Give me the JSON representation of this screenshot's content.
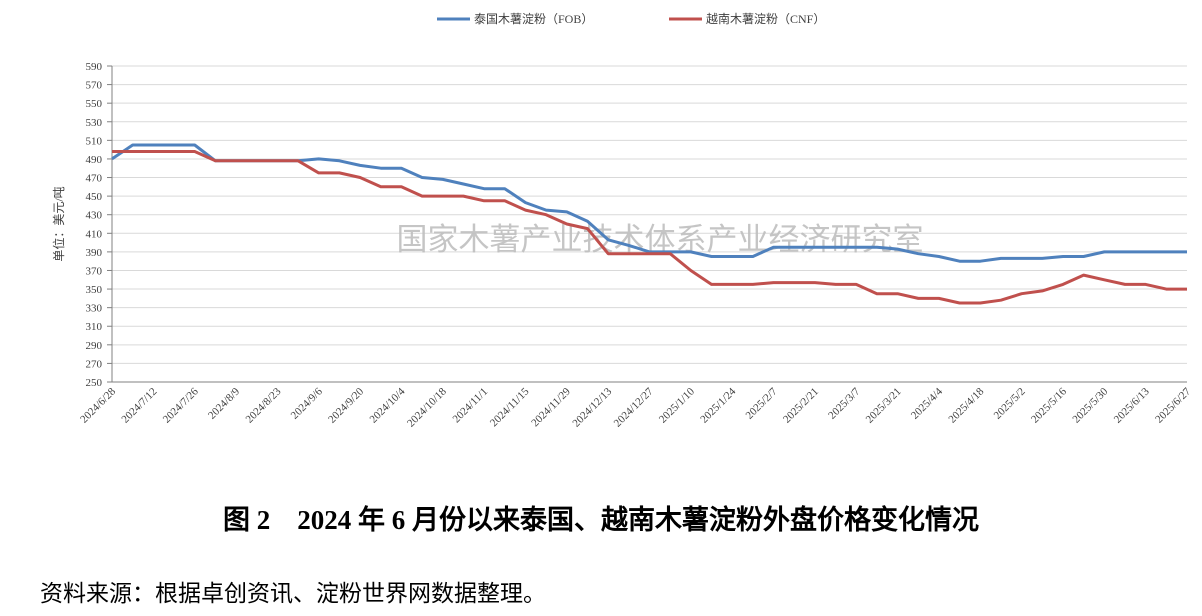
{
  "chart_data": {
    "type": "line",
    "y_label": "单位：美元/吨",
    "watermark": "国家木薯产业技术体系产业经济研究室",
    "caption": "图 2　2024 年 6 月份以来泰国、越南木薯淀粉外盘价格变化情况",
    "source": "资料来源：根据卓创资讯、淀粉世界网数据整理。",
    "categories": [
      "2024/6/28",
      null,
      "2024/7/12",
      null,
      "2024/7/26",
      null,
      "2024/8/9",
      null,
      "2024/8/23",
      null,
      "2024/9/6",
      null,
      "2024/9/20",
      null,
      "2024/10/4",
      null,
      "2024/10/18",
      null,
      "2024/11/1",
      null,
      "2024/11/15",
      null,
      "2024/11/29",
      null,
      "2024/12/13",
      null,
      "2024/12/27",
      null,
      "2025/1/10",
      null,
      "2025/1/24",
      null,
      "2025/2/7",
      null,
      "2025/2/21",
      null,
      "2025/3/7",
      null,
      "2025/3/21",
      null,
      "2025/4/4",
      null,
      "2025/4/18",
      null,
      "2025/5/2",
      null,
      "2025/5/16",
      null,
      "2025/5/30",
      null,
      "2025/6/13",
      null,
      "2025/6/27"
    ],
    "series": [
      {
        "name": "泰国木薯淀粉（FOB）",
        "color": "#4f81bd",
        "values": [
          490,
          505,
          505,
          505,
          505,
          488,
          488,
          488,
          488,
          488,
          490,
          488,
          483,
          480,
          480,
          470,
          468,
          463,
          458,
          458,
          443,
          435,
          433,
          423,
          403,
          397,
          390,
          390,
          390,
          385,
          385,
          385,
          395,
          395,
          395,
          395,
          395,
          395,
          393,
          388,
          385,
          380,
          380,
          383,
          383,
          383,
          385,
          385,
          390,
          390,
          390,
          390,
          390
        ]
      },
      {
        "name": "越南木薯淀粉（CNF）",
        "color": "#c0504d",
        "values": [
          498,
          498,
          498,
          498,
          498,
          488,
          488,
          488,
          488,
          488,
          475,
          475,
          470,
          460,
          460,
          450,
          450,
          450,
          445,
          445,
          435,
          430,
          420,
          415,
          388,
          388,
          388,
          388,
          370,
          355,
          355,
          355,
          357,
          357,
          357,
          355,
          355,
          345,
          345,
          340,
          340,
          335,
          335,
          338,
          345,
          348,
          355,
          365,
          360,
          355,
          355,
          350,
          350
        ]
      }
    ],
    "ylim": [
      250,
      590
    ],
    "yticks": [
      250,
      270,
      290,
      310,
      330,
      350,
      370,
      390,
      410,
      430,
      450,
      470,
      490,
      510,
      530,
      550,
      570,
      590
    ],
    "grid": true
  }
}
